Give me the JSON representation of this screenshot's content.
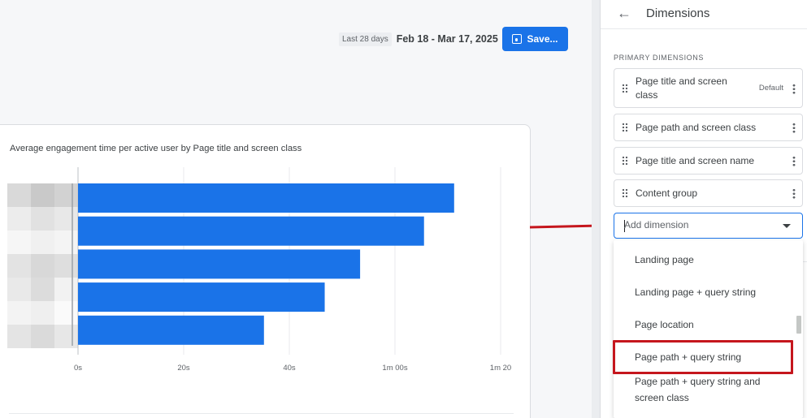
{
  "header": {
    "date_chip": "Last 28 days",
    "date_range": "Feb 18 - Mar 17, 2025",
    "save_label": "Save...",
    "save_icon": "save-icon"
  },
  "chart": {
    "title": "Average engagement time per active user by Page title and screen class"
  },
  "chart_data": {
    "type": "bar",
    "orientation": "horizontal",
    "title": "Average engagement time per active user by Page title and screen class",
    "categories": [
      "",
      "",
      "",
      "",
      ""
    ],
    "values": [
      71.2,
      65.5,
      53.4,
      46.7,
      35.2
    ],
    "unit": "seconds",
    "xticks": [
      "0s",
      "20s",
      "40s",
      "1m 00s",
      "1m 20"
    ],
    "xtick_values": [
      0,
      20,
      40,
      60,
      80
    ],
    "xlim": [
      0,
      80
    ],
    "bar_color": "#1a73e8",
    "grid": true
  },
  "panel": {
    "title": "Dimensions",
    "back_icon": "arrow-back-icon",
    "section_label": "PRIMARY DIMENSIONS",
    "dimensions": [
      {
        "label": "Page title and screen class",
        "tag": "Default"
      },
      {
        "label": "Page path and screen class",
        "tag": ""
      },
      {
        "label": "Page title and screen name",
        "tag": ""
      },
      {
        "label": "Content group",
        "tag": ""
      }
    ],
    "add_dimension_placeholder": "Add dimension",
    "dropdown_options": [
      "Landing page",
      "Landing page + query string",
      "Page location",
      "Page path + query string",
      "Page path + query string and screen class"
    ],
    "highlighted_option": "Page path + query string"
  },
  "colors": {
    "accent": "#1a73e8",
    "annotation_red": "#c5161d"
  }
}
